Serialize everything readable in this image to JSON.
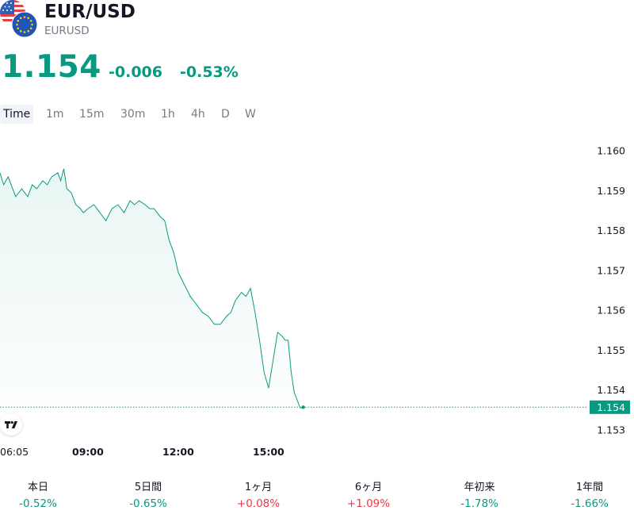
{
  "header": {
    "symbol_title": "EUR/USD",
    "symbol_code": "EURUSD",
    "icons": [
      "us-flag-icon",
      "eu-flag-icon"
    ]
  },
  "quote": {
    "last_price": "1.154",
    "change_abs": "-0.006",
    "change_pct": "-0.53%",
    "change_color": "#089981"
  },
  "intervals": {
    "items": [
      "Time",
      "1m",
      "15m",
      "30m",
      "1h",
      "4h",
      "D",
      "W"
    ],
    "active": "Time"
  },
  "chart_data": {
    "type": "area",
    "line_color": "#089981",
    "fill_color": "#e6f5f1",
    "price_label_bg": "#089981",
    "yticks": [
      "1.160",
      "1.159",
      "1.158",
      "1.157",
      "1.156",
      "1.155",
      "1.154",
      "1.153"
    ],
    "ylim": [
      1.1528,
      1.1606
    ],
    "xticks": [
      {
        "label": "06:05",
        "bold": false,
        "t": 6.083
      },
      {
        "label": "09:00",
        "bold": true,
        "t": 9.0
      },
      {
        "label": "12:00",
        "bold": true,
        "t": 12.0
      },
      {
        "label": "15:00",
        "bold": true,
        "t": 15.0
      }
    ],
    "xlim": [
      6.08,
      24.0
    ],
    "current_value_label": "1.154",
    "current_value": 1.15357,
    "grid": false,
    "series": [
      {
        "x": [
          6.08,
          6.2,
          6.35,
          6.5,
          6.6,
          6.8,
          7.0,
          7.15,
          7.3,
          7.5,
          7.65,
          7.8,
          8.0,
          8.1,
          8.2,
          8.3,
          8.45,
          8.6,
          8.75,
          8.85,
          9.0,
          9.2,
          9.4,
          9.6,
          9.8,
          10.0,
          10.2,
          10.4,
          10.55,
          10.7,
          10.9,
          11.05,
          11.2,
          11.4,
          11.55,
          11.7,
          11.85,
          12.0,
          12.2,
          12.4,
          12.6,
          12.8,
          13.0,
          13.2,
          13.4,
          13.6,
          13.75,
          13.9,
          14.0,
          14.1,
          14.25,
          14.4,
          14.55,
          14.7,
          14.85,
          15.0,
          15.15,
          15.3,
          15.45,
          15.55,
          15.65,
          15.75,
          15.85,
          15.95,
          16.05,
          16.15
        ],
        "y": [
          1.15945,
          1.15915,
          1.15935,
          1.15905,
          1.15885,
          1.15905,
          1.15885,
          1.15915,
          1.15905,
          1.15925,
          1.15915,
          1.15935,
          1.15945,
          1.15925,
          1.15955,
          1.15905,
          1.15895,
          1.15865,
          1.15855,
          1.15845,
          1.15855,
          1.15865,
          1.15845,
          1.15825,
          1.15855,
          1.15865,
          1.15845,
          1.15875,
          1.15865,
          1.15875,
          1.15865,
          1.15855,
          1.15855,
          1.15835,
          1.15825,
          1.15775,
          1.15745,
          1.15695,
          1.15665,
          1.15635,
          1.15615,
          1.15595,
          1.15585,
          1.15565,
          1.15565,
          1.15585,
          1.15595,
          1.15625,
          1.15635,
          1.15645,
          1.15635,
          1.15655,
          1.15595,
          1.15525,
          1.15445,
          1.15405,
          1.15475,
          1.15545,
          1.15535,
          1.15525,
          1.15525,
          1.15445,
          1.15395,
          1.15375,
          1.15355,
          1.15357
        ]
      }
    ]
  },
  "performance": [
    {
      "label": "本日",
      "value": "-0.52%",
      "color": "#089981"
    },
    {
      "label": "5日間",
      "value": "-0.65%",
      "color": "#089981"
    },
    {
      "label": "1ヶ月",
      "value": "+0.08%",
      "color": "#f23645"
    },
    {
      "label": "6ヶ月",
      "value": "+1.09%",
      "color": "#f23645"
    },
    {
      "label": "年初来",
      "value": "-1.78%",
      "color": "#089981"
    },
    {
      "label": "1年間",
      "value": "-1.66%",
      "color": "#089981"
    }
  ]
}
